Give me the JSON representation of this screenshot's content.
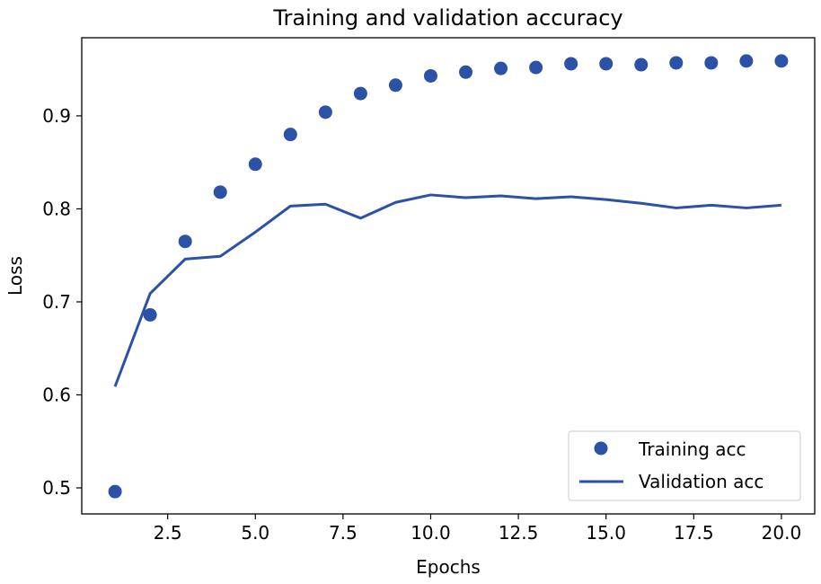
{
  "chart_data": {
    "type": "line",
    "title": "Training and validation accuracy",
    "xlabel": "Epochs",
    "ylabel": "Loss",
    "xlim": [
      0.05,
      20.95
    ],
    "ylim": [
      0.472,
      0.984
    ],
    "xticks": [
      2.5,
      5.0,
      7.5,
      10.0,
      12.5,
      15.0,
      17.5,
      20.0
    ],
    "xtick_labels": [
      "2.5",
      "5.0",
      "7.5",
      "10.0",
      "12.5",
      "15.0",
      "17.5",
      "20.0"
    ],
    "yticks": [
      0.5,
      0.6,
      0.7,
      0.8,
      0.9
    ],
    "ytick_labels": [
      "0.5",
      "0.6",
      "0.7",
      "0.8",
      "0.9"
    ],
    "grid": false,
    "legend_position": "bottom-right",
    "x": [
      1,
      2,
      3,
      4,
      5,
      6,
      7,
      8,
      9,
      10,
      11,
      12,
      13,
      14,
      15,
      16,
      17,
      18,
      19,
      20
    ],
    "series": [
      {
        "name": "Training acc",
        "style": "dots",
        "color": "#2b52a7",
        "values": [
          0.496,
          0.686,
          0.765,
          0.818,
          0.848,
          0.88,
          0.904,
          0.924,
          0.933,
          0.943,
          0.947,
          0.951,
          0.952,
          0.956,
          0.956,
          0.955,
          0.957,
          0.957,
          0.959,
          0.959
        ]
      },
      {
        "name": "Validation acc",
        "style": "line",
        "color": "#2b52a7",
        "values": [
          0.609,
          0.709,
          0.746,
          0.749,
          0.775,
          0.803,
          0.805,
          0.79,
          0.807,
          0.815,
          0.812,
          0.814,
          0.811,
          0.813,
          0.81,
          0.806,
          0.801,
          0.804,
          0.801,
          0.804
        ]
      }
    ]
  }
}
